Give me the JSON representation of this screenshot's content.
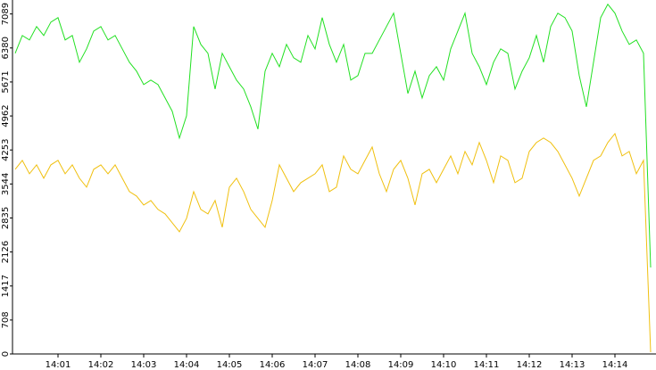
{
  "chart_data": {
    "type": "line",
    "categories": [
      null,
      null,
      null,
      null,
      null,
      null,
      "14:01",
      null,
      null,
      null,
      null,
      null,
      "14:02",
      null,
      null,
      null,
      null,
      null,
      "14:03",
      null,
      null,
      null,
      null,
      null,
      "14:04",
      null,
      null,
      null,
      null,
      null,
      "14:05",
      null,
      null,
      null,
      null,
      null,
      "14:06",
      null,
      null,
      null,
      null,
      null,
      "14:07",
      null,
      null,
      null,
      null,
      null,
      "14:08",
      null,
      null,
      null,
      null,
      null,
      "14:09",
      null,
      null,
      null,
      null,
      null,
      "14:10",
      null,
      null,
      null,
      null,
      null,
      "14:11",
      null,
      null,
      null,
      null,
      null,
      "14:12",
      null,
      null,
      null,
      null,
      null,
      "14:13",
      null,
      null,
      null,
      null,
      null,
      "14:14",
      null,
      null,
      null,
      null,
      null
    ],
    "series": [
      {
        "color": "#22e022",
        "values": [
          6268,
          6640,
          6547,
          6826,
          6640,
          6919,
          7012,
          6547,
          6640,
          6082,
          6361,
          6733,
          6826,
          6547,
          6640,
          6361,
          6082,
          5896,
          5617,
          5710,
          5617,
          5338,
          5059,
          4501,
          4966,
          6826,
          6454,
          6268,
          5524,
          6268,
          5989,
          5710,
          5524,
          5152,
          4687,
          5896,
          6268,
          5989,
          6454,
          6175,
          6082,
          6640,
          6361,
          7012,
          6454,
          6082,
          6454,
          5710,
          5803,
          6268,
          6268,
          6547,
          6826,
          7105,
          6268,
          5431,
          5896,
          5338,
          5803,
          5989,
          5710,
          6361,
          6733,
          7105,
          6268,
          5989,
          5617,
          6082,
          6361,
          6268,
          5524,
          5896,
          6175,
          6640,
          6082,
          6826,
          7105,
          7012,
          6733,
          5803,
          5152,
          6082,
          7012,
          7291,
          7105,
          6733,
          6454,
          6547,
          6268,
          1804
        ]
      },
      {
        "color": "#f0c010",
        "values": [
          3850,
          4036,
          3757,
          3943,
          3664,
          3943,
          4036,
          3757,
          3943,
          3664,
          3478,
          3850,
          3943,
          3757,
          3943,
          3664,
          3385,
          3292,
          3106,
          3199,
          3013,
          2920,
          2734,
          2548,
          2827,
          3385,
          3013,
          2920,
          3199,
          2641,
          3478,
          3664,
          3385,
          3013,
          2827,
          2641,
          3199,
          3943,
          3664,
          3385,
          3571,
          3664,
          3757,
          3943,
          3385,
          3478,
          4129,
          3850,
          3757,
          4036,
          4315,
          3757,
          3385,
          3850,
          4036,
          3664,
          3106,
          3757,
          3850,
          3571,
          3850,
          4129,
          3757,
          4222,
          3943,
          4408,
          4036,
          3571,
          4129,
          4036,
          3571,
          3664,
          4222,
          4408,
          4501,
          4408,
          4222,
          3943,
          3664,
          3292,
          3664,
          4036,
          4129,
          4408,
          4594,
          4129,
          4222,
          3757,
          4036,
          37
        ]
      }
    ],
    "ylim": [
      0,
      7380
    ],
    "yticks": [
      0,
      708,
      1417,
      2126,
      2835,
      3544,
      4253,
      4962,
      5671,
      6380,
      7089
    ]
  }
}
